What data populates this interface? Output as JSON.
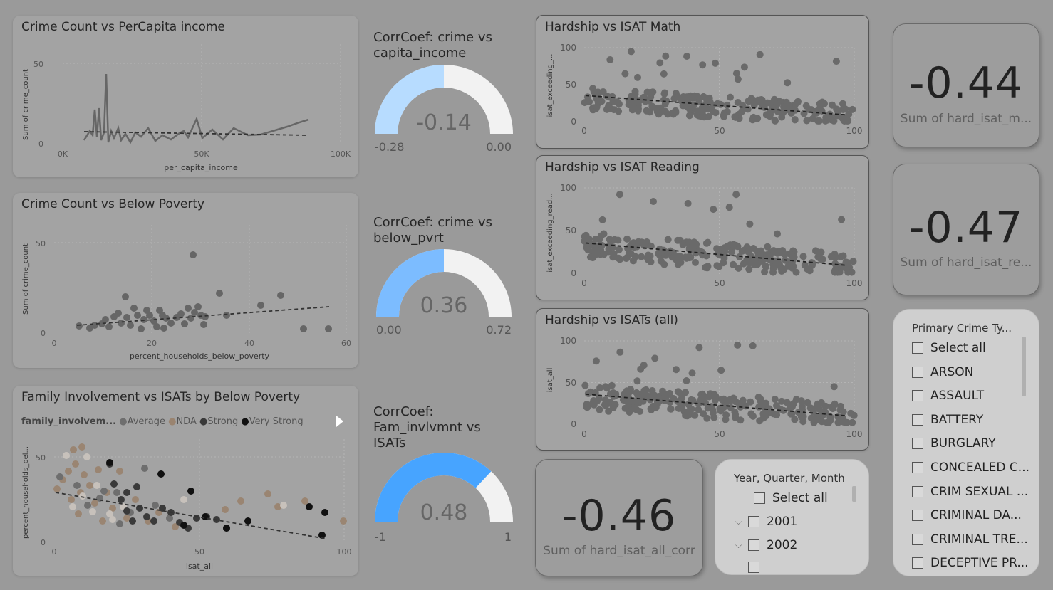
{
  "charts": {
    "crime_income": {
      "title": "Crime Count vs PerCapita income",
      "ylabel": "Sum of crime_count",
      "xlabel": "per_capita_income",
      "xticks": [
        "0K",
        "50K",
        "100K"
      ],
      "yticks": [
        "0",
        "50"
      ]
    },
    "crime_poverty": {
      "title": "Crime Count vs Below Poverty",
      "ylabel": "Sum of crime_count",
      "xlabel": "percent_households_below_poverty",
      "xticks": [
        "0",
        "20",
        "40",
        "60"
      ],
      "yticks": [
        "0",
        "50"
      ]
    },
    "family": {
      "title": "Family Involvement vs ISATs by Below Poverty",
      "legend_title": "family_involvem...",
      "legend": [
        {
          "name": "Average",
          "color": "#6e6e6e"
        },
        {
          "name": "NDA",
          "color": "#9a8470"
        },
        {
          "name": "Strong",
          "color": "#3a3a3a"
        },
        {
          "name": "Very Strong",
          "color": "#111111"
        }
      ],
      "ylabel": "percent_households_bel...",
      "xlabel": "isat_all",
      "xticks": [
        "0",
        "50",
        "100"
      ],
      "yticks": [
        "0",
        "50"
      ]
    },
    "hard_math": {
      "title": "Hardship vs ISAT Math",
      "ylabel": "isat_exceeding_...",
      "xticks": [
        "0",
        "50",
        "100"
      ],
      "yticks": [
        "0",
        "50",
        "100"
      ]
    },
    "hard_reading": {
      "title": "Hardship vs ISAT Reading",
      "ylabel": "isat_exceeding_read...",
      "xticks": [
        "0",
        "50",
        "100"
      ],
      "yticks": [
        "0",
        "50",
        "100"
      ]
    },
    "hard_all": {
      "title": "Hardship vs ISATs (all)",
      "ylabel": "isat_all",
      "xticks": [
        "0",
        "50",
        "100"
      ],
      "yticks": [
        "0",
        "50",
        "100"
      ]
    }
  },
  "gauges": {
    "g1": {
      "title_l1": "CorrCoef: crime vs",
      "title_l2": "capita_income",
      "title_l3": "",
      "value": "-0.14",
      "min": "-0.28",
      "max": "0.00",
      "fill_fraction": 0.5,
      "color": "#b7dcff"
    },
    "g2": {
      "title_l1": "CorrCoef: crime vs",
      "title_l2": "below_pvrt",
      "title_l3": "",
      "value": "0.36",
      "min": "0.00",
      "max": "0.72",
      "fill_fraction": 0.5,
      "color": "#7cbcff"
    },
    "g3": {
      "title_l1": "CorrCoef:",
      "title_l2": "Fam_invlvmnt vs",
      "title_l3": "ISATs",
      "value": "0.48",
      "min": "-1",
      "max": "1",
      "fill_fraction": 0.74,
      "color": "#47a4ff"
    }
  },
  "kpis": {
    "math": {
      "value": "-0.44",
      "label": "Sum of hard_isat_m..."
    },
    "reading": {
      "value": "-0.47",
      "label": "Sum of hard_isat_re..."
    },
    "all": {
      "value": "-0.46",
      "label": "Sum of hard_isat_all_corr"
    }
  },
  "date_slicer": {
    "title": "Year, Quarter, Month",
    "select_all": "Select all",
    "items": [
      "2001",
      "2002"
    ]
  },
  "crime_slicer": {
    "title": "Primary Crime Ty...",
    "items": [
      "Select all",
      "ARSON",
      "ASSAULT",
      "BATTERY",
      "BURGLARY",
      "CONCEALED C...",
      "CRIM SEXUAL ...",
      "CRIMINAL DA...",
      "CRIMINAL TRE...",
      "DECEPTIVE PR..."
    ]
  }
}
